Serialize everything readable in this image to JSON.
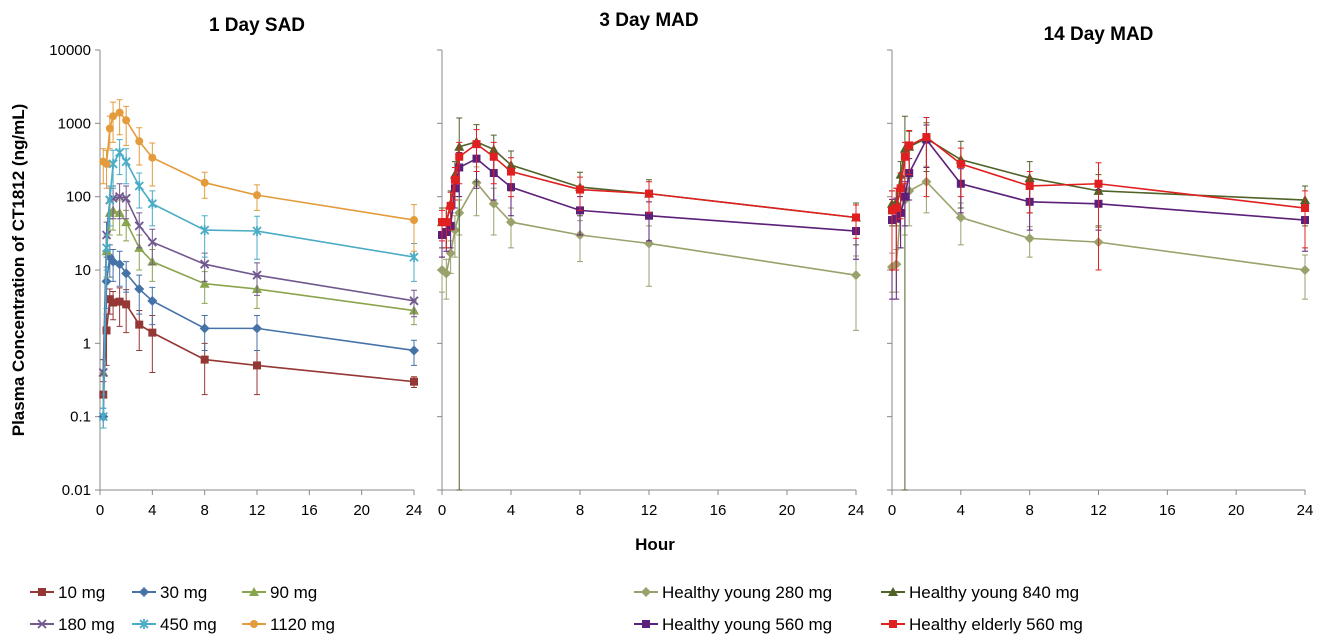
{
  "figure": {
    "ylabel": "Plasma Concentration of CT1812 (ng/mL)",
    "xlabel": "Hour"
  },
  "chart_data": [
    {
      "type": "line",
      "title": "1 Day SAD",
      "yscale": "log",
      "ylim": [
        0.01,
        10000
      ],
      "xlim": [
        0,
        24
      ],
      "xticks": [
        "0",
        "4",
        "8",
        "12",
        "16",
        "20",
        "24"
      ],
      "yticks": [
        "0.01",
        "0.1",
        "1",
        "10",
        "100",
        "1000",
        "10000"
      ],
      "series": [
        {
          "name": "10 mg",
          "color": "#953735",
          "marker": "square",
          "x": [
            0.25,
            0.5,
            0.75,
            1,
            1.5,
            2,
            3,
            4,
            8,
            12,
            24
          ],
          "y": [
            0.2,
            1.5,
            4,
            3.6,
            3.7,
            3.4,
            1.8,
            1.4,
            0.6,
            0.5,
            0.3
          ],
          "err": [
            0.1,
            1,
            1.5,
            1.5,
            2,
            2,
            1,
            1,
            0.4,
            0.3,
            0.05
          ]
        },
        {
          "name": "30 mg",
          "color": "#4572A7",
          "marker": "diamond",
          "x": [
            0.25,
            0.5,
            0.75,
            1,
            1.5,
            2,
            3,
            4,
            8,
            12,
            24
          ],
          "y": [
            0.1,
            7,
            15,
            13,
            12,
            9,
            5.5,
            3.8,
            1.6,
            1.6,
            0.8
          ],
          "err": [
            0.03,
            4,
            7,
            6,
            6,
            4,
            3,
            2,
            0.8,
            0.8,
            0.3
          ]
        },
        {
          "name": "90 mg",
          "color": "#89A54E",
          "marker": "triangle",
          "x": [
            0.25,
            0.5,
            0.75,
            1,
            1.5,
            2,
            3,
            4,
            8,
            12,
            24
          ],
          "y": [
            0.4,
            18,
            60,
            65,
            60,
            45,
            20,
            13,
            6.5,
            5.5,
            2.8
          ],
          "err": [
            0.2,
            10,
            30,
            30,
            30,
            20,
            10,
            6,
            3,
            2.5,
            1
          ]
        },
        {
          "name": "180 mg",
          "color": "#71588F",
          "marker": "x",
          "x": [
            0.25,
            0.5,
            0.75,
            1,
            1.5,
            2,
            3,
            4,
            8,
            12,
            24
          ],
          "y": [
            0.4,
            30,
            90,
            95,
            100,
            95,
            40,
            24,
            12,
            8.5,
            3.8
          ],
          "err": [
            0.2,
            15,
            40,
            45,
            50,
            45,
            20,
            12,
            5,
            4,
            1.5
          ]
        },
        {
          "name": "450 mg",
          "color": "#4BACC6",
          "marker": "star",
          "x": [
            0.25,
            0.5,
            0.75,
            1,
            1.5,
            2,
            3,
            4,
            8,
            12,
            24
          ],
          "y": [
            0.1,
            20,
            90,
            280,
            400,
            300,
            140,
            80,
            35,
            34,
            15
          ],
          "err": [
            0.03,
            10,
            50,
            150,
            200,
            150,
            70,
            40,
            20,
            20,
            8
          ]
        },
        {
          "name": "1120 mg",
          "color": "#E49B3B",
          "marker": "circle",
          "x": [
            0.25,
            0.5,
            0.75,
            1,
            1.5,
            2,
            3,
            4,
            8,
            12,
            24
          ],
          "y": [
            300,
            280,
            850,
            1250,
            1400,
            1100,
            570,
            340,
            155,
            105,
            48
          ],
          "err": [
            150,
            150,
            400,
            700,
            700,
            600,
            300,
            200,
            60,
            40,
            30
          ]
        }
      ]
    },
    {
      "type": "line",
      "title": "3 Day MAD",
      "yscale": "log",
      "ylim": [
        0.01,
        10000
      ],
      "xlim": [
        0,
        24
      ],
      "xticks": [
        "0",
        "4",
        "8",
        "12",
        "16",
        "20",
        "24"
      ],
      "series": [
        {
          "name": "Healthy young 280 mg",
          "color": "#9BA16B",
          "marker": "diamond",
          "x": [
            0,
            0.25,
            0.5,
            0.75,
            1,
            2,
            3,
            4,
            8,
            12,
            24
          ],
          "y": [
            10,
            9,
            17,
            35,
            60,
            155,
            80,
            45,
            30,
            23,
            8.5
          ],
          "err": [
            5,
            5,
            8,
            20,
            30,
            100,
            50,
            25,
            17,
            17,
            7
          ]
        },
        {
          "name": "Healthy young 840 mg",
          "color": "#4F6228",
          "marker": "triangle",
          "x": [
            0,
            0.25,
            0.5,
            0.75,
            1,
            2,
            3,
            4,
            8,
            12,
            24
          ],
          "y": [
            45,
            45,
            80,
            200,
            480,
            560,
            440,
            270,
            135,
            110,
            52
          ],
          "err": [
            25,
            25,
            40,
            100,
            700,
            400,
            250,
            150,
            80,
            60,
            30
          ]
        },
        {
          "name": "Healthy young 560 mg",
          "color": "#5C1F7A",
          "marker": "square",
          "x": [
            0,
            0.25,
            0.5,
            0.75,
            1,
            2,
            3,
            4,
            8,
            12,
            24
          ],
          "y": [
            30,
            33,
            40,
            130,
            250,
            330,
            210,
            135,
            65,
            55,
            34
          ],
          "err": [
            15,
            15,
            20,
            60,
            150,
            200,
            120,
            80,
            35,
            30,
            20
          ]
        },
        {
          "name": "Healthy elderly 560 mg",
          "color": "#E02020",
          "marker": "square",
          "x": [
            0,
            0.25,
            0.5,
            0.75,
            1,
            2,
            3,
            4,
            8,
            12,
            24
          ],
          "y": [
            45,
            45,
            75,
            170,
            350,
            520,
            350,
            220,
            125,
            110,
            52
          ],
          "err": [
            20,
            25,
            40,
            80,
            200,
            300,
            200,
            120,
            60,
            50,
            25
          ]
        }
      ]
    },
    {
      "type": "line",
      "title": "14 Day MAD",
      "yscale": "log",
      "ylim": [
        0.01,
        10000
      ],
      "xlim": [
        0,
        24
      ],
      "xticks": [
        "0",
        "4",
        "8",
        "12",
        "16",
        "20",
        "24"
      ],
      "series": [
        {
          "name": "Healthy young 280 mg",
          "color": "#9BA16B",
          "marker": "diamond",
          "x": [
            0,
            0.25,
            0.5,
            0.75,
            1,
            2,
            4,
            8,
            12,
            24
          ],
          "y": [
            11,
            12,
            60,
            90,
            120,
            160,
            52,
            27,
            24,
            10
          ],
          "err": [
            6,
            7,
            40,
            60,
            80,
            100,
            30,
            12,
            14,
            6
          ]
        },
        {
          "name": "Healthy young 840 mg",
          "color": "#4F6228",
          "marker": "triangle",
          "x": [
            0,
            0.25,
            0.5,
            0.75,
            1,
            2,
            4,
            8,
            12,
            24
          ],
          "y": [
            80,
            85,
            200,
            450,
            480,
            620,
            320,
            180,
            120,
            90
          ],
          "err": [
            40,
            45,
            100,
            800,
            300,
            400,
            250,
            120,
            80,
            50
          ]
        },
        {
          "name": "Healthy young 560 mg",
          "color": "#5C1F7A",
          "marker": "square",
          "x": [
            0,
            0.25,
            0.5,
            0.75,
            1,
            2,
            4,
            8,
            12,
            24
          ],
          "y": [
            48,
            50,
            60,
            100,
            210,
            600,
            150,
            85,
            80,
            48
          ],
          "err": [
            44,
            46,
            40,
            60,
            120,
            350,
            90,
            50,
            45,
            30
          ]
        },
        {
          "name": "Healthy elderly 560 mg",
          "color": "#E02020",
          "marker": "square",
          "x": [
            0,
            0.25,
            0.5,
            0.75,
            1,
            2,
            4,
            8,
            12,
            24
          ],
          "y": [
            65,
            70,
            130,
            350,
            500,
            650,
            280,
            140,
            150,
            70
          ],
          "err": [
            55,
            60,
            80,
            200,
            300,
            550,
            180,
            80,
            140,
            50
          ]
        }
      ]
    }
  ],
  "legends": {
    "left": [
      {
        "name": "10 mg",
        "color": "#953735",
        "marker": "square"
      },
      {
        "name": "30 mg",
        "color": "#4572A7",
        "marker": "diamond"
      },
      {
        "name": "90 mg",
        "color": "#89A54E",
        "marker": "triangle"
      },
      {
        "name": "180 mg",
        "color": "#71588F",
        "marker": "x"
      },
      {
        "name": "450 mg",
        "color": "#4BACC6",
        "marker": "star"
      },
      {
        "name": "1120 mg",
        "color": "#E49B3B",
        "marker": "circle"
      }
    ],
    "right": [
      {
        "name": "Healthy young 280 mg",
        "color": "#9BA16B",
        "marker": "diamond"
      },
      {
        "name": "Healthy young 840 mg",
        "color": "#4F6228",
        "marker": "triangle"
      },
      {
        "name": "Healthy young 560 mg",
        "color": "#5C1F7A",
        "marker": "square"
      },
      {
        "name": "Healthy elderly 560 mg",
        "color": "#E02020",
        "marker": "square"
      }
    ]
  }
}
